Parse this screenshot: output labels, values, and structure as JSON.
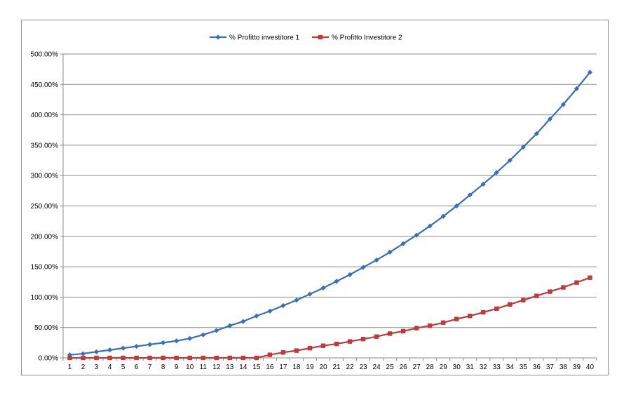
{
  "chart_data": {
    "type": "line",
    "title": "",
    "xlabel": "",
    "ylabel": "",
    "ylim": [
      0,
      500
    ],
    "y_ticks": [
      "0.00%",
      "50.00%",
      "100.00%",
      "150.00%",
      "200.00%",
      "250.00%",
      "300.00%",
      "350.00%",
      "400.00%",
      "450.00%",
      "500.00%"
    ],
    "grid": true,
    "legend_position": "top",
    "categories": [
      "1",
      "2",
      "3",
      "4",
      "5",
      "6",
      "7",
      "8",
      "9",
      "10",
      "11",
      "12",
      "13",
      "14",
      "15",
      "16",
      "17",
      "18",
      "19",
      "20",
      "21",
      "22",
      "23",
      "24",
      "25",
      "26",
      "27",
      "28",
      "29",
      "30",
      "31",
      "32",
      "33",
      "34",
      "35",
      "36",
      "37",
      "38",
      "39",
      "40"
    ],
    "series": [
      {
        "name": "% Profitto investitore 1",
        "color": "#3a6fb5",
        "marker": "diamond",
        "values": [
          5,
          7,
          10,
          13,
          16,
          19,
          22,
          25,
          28,
          32,
          38,
          45,
          53,
          60,
          69,
          77,
          86,
          95,
          105,
          115,
          126,
          137,
          149,
          161,
          174,
          188,
          202,
          217,
          233,
          250,
          268,
          286,
          305,
          325,
          347,
          369,
          393,
          417,
          443,
          470
        ]
      },
      {
        "name": "% Profitto Investitore 2",
        "color": "#c0393b",
        "marker": "square",
        "values": [
          0,
          0,
          0,
          0,
          0,
          0,
          0,
          0,
          0,
          0,
          0,
          0,
          0,
          0,
          0,
          5,
          9,
          12,
          16,
          20,
          23,
          27,
          31,
          35,
          40,
          44,
          49,
          53,
          58,
          64,
          69,
          75,
          81,
          88,
          95,
          102,
          109,
          116,
          124,
          132
        ]
      }
    ]
  }
}
